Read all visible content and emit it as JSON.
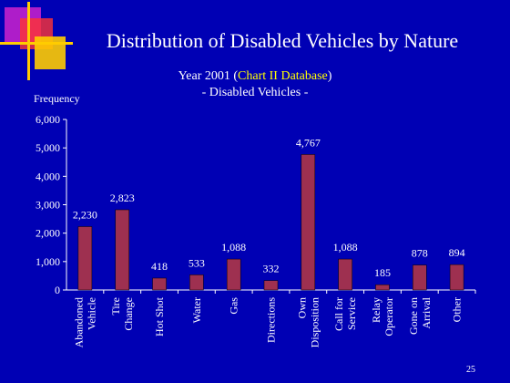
{
  "slide": {
    "title": "Distribution of Disabled Vehicles by Nature",
    "subtitle_year": "Year 2001 (",
    "subtitle_db": "Chart II Database",
    "subtitle_close": ")",
    "subtitle_line2": "- Disabled Vehicles -",
    "page_number": "25"
  },
  "colors": {
    "background": "#0000b4",
    "bar": "#9e3050",
    "text": "#ffffff",
    "highlight": "#ffff00",
    "logo_magenta": "#cc22cc",
    "logo_yellow": "#ffcc00",
    "logo_red": "#ff3333"
  },
  "chart_data": {
    "type": "bar",
    "ylabel": "Frequency",
    "ylim": [
      0,
      6000
    ],
    "yticks": [
      "0",
      "1,000",
      "2,000",
      "3,000",
      "4,000",
      "5,000",
      "6,000"
    ],
    "ytick_values": [
      0,
      1000,
      2000,
      3000,
      4000,
      5000,
      6000
    ],
    "categories": [
      [
        "Abandoned",
        "Vehicle"
      ],
      [
        "Tire",
        "Change"
      ],
      [
        "Hot Shot"
      ],
      [
        "Water"
      ],
      [
        "Gas"
      ],
      [
        "Directions"
      ],
      [
        "Own",
        "Disposition"
      ],
      [
        "Call for",
        "Service"
      ],
      [
        "Relay",
        "Operator"
      ],
      [
        "Gone on",
        "Arrival"
      ],
      [
        "Other"
      ]
    ],
    "values": [
      2230,
      2823,
      418,
      533,
      1088,
      332,
      4767,
      1088,
      185,
      878,
      894
    ],
    "value_labels": [
      "2,230",
      "2,823",
      "418",
      "533",
      "1,088",
      "332",
      "4,767",
      "1,088",
      "185",
      "878",
      "894"
    ],
    "grid": false
  }
}
